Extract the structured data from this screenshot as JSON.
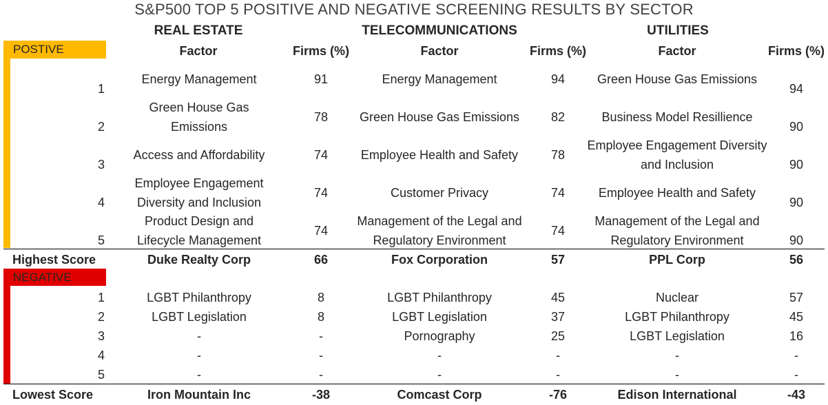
{
  "title": "S&P500 TOP 5 POSITIVE AND NEGATIVE SCREENING RESULTS BY SECTOR",
  "sectors": [
    "REAL ESTATE",
    "TELECOMMUNICATIONS",
    "UTILITIES"
  ],
  "headers": {
    "factor": "Factor",
    "firms": "Firms (%)"
  },
  "positive": {
    "label": "POSTIVE",
    "ranks": [
      "1",
      "2",
      "3",
      "4",
      "5"
    ],
    "rows": [
      [
        [
          "Energy Management",
          "91"
        ],
        [
          "Energy Management",
          "94"
        ],
        [
          "Green House Gas Emissions",
          "94"
        ]
      ],
      [
        [
          "Green House Gas Emissions",
          "78"
        ],
        [
          "Green House Gas Emissions",
          "82"
        ],
        [
          "Business Model Resillience",
          "90"
        ]
      ],
      [
        [
          "Access and Affordability",
          "74"
        ],
        [
          "Employee Health and Safety",
          "78"
        ],
        [
          "Employee Engagement Diversity and Inclusion",
          "90"
        ]
      ],
      [
        [
          "Employee Engagement Diversity and Inclusion",
          "74"
        ],
        [
          "Customer Privacy",
          "74"
        ],
        [
          "Employee Health and Safety",
          "90"
        ]
      ],
      [
        [
          "Product Design and Lifecycle Management",
          "74"
        ],
        [
          "Management of the Legal and Regulatory Environment",
          "74"
        ],
        [
          "Management of the Legal and Regulatory Environment",
          "90"
        ]
      ]
    ]
  },
  "highest": {
    "label": "Highest Score",
    "values": [
      [
        "Duke Realty Corp",
        "66"
      ],
      [
        "Fox Corporation",
        "57"
      ],
      [
        "PPL Corp",
        "56"
      ]
    ]
  },
  "negative": {
    "label": "NEGATIVE",
    "ranks": [
      "1",
      "2",
      "3",
      "4",
      "5"
    ],
    "rows": [
      [
        [
          "LGBT Philanthropy",
          "8"
        ],
        [
          "LGBT Philanthropy",
          "45"
        ],
        [
          "Nuclear",
          "57"
        ]
      ],
      [
        [
          "LGBT Legislation",
          "8"
        ],
        [
          "LGBT Legislation",
          "37"
        ],
        [
          "LGBT Philanthropy",
          "45"
        ]
      ],
      [
        [
          "-",
          "-"
        ],
        [
          "Pornography",
          "25"
        ],
        [
          "LGBT Legislation",
          "16"
        ]
      ],
      [
        [
          "-",
          "-"
        ],
        [
          "-",
          "-"
        ],
        [
          "-",
          "-"
        ]
      ],
      [
        [
          "-",
          "-"
        ],
        [
          "-",
          "-"
        ],
        [
          "-",
          "-"
        ]
      ]
    ]
  },
  "lowest": {
    "label": "Lowest Score",
    "values": [
      [
        "Iron Mountain Inc",
        "-38"
      ],
      [
        "Comcast Corp",
        "-76"
      ],
      [
        "Edison International",
        "-43"
      ]
    ]
  },
  "colors": {
    "positive": "#FFB900",
    "negative": "#E00000"
  }
}
